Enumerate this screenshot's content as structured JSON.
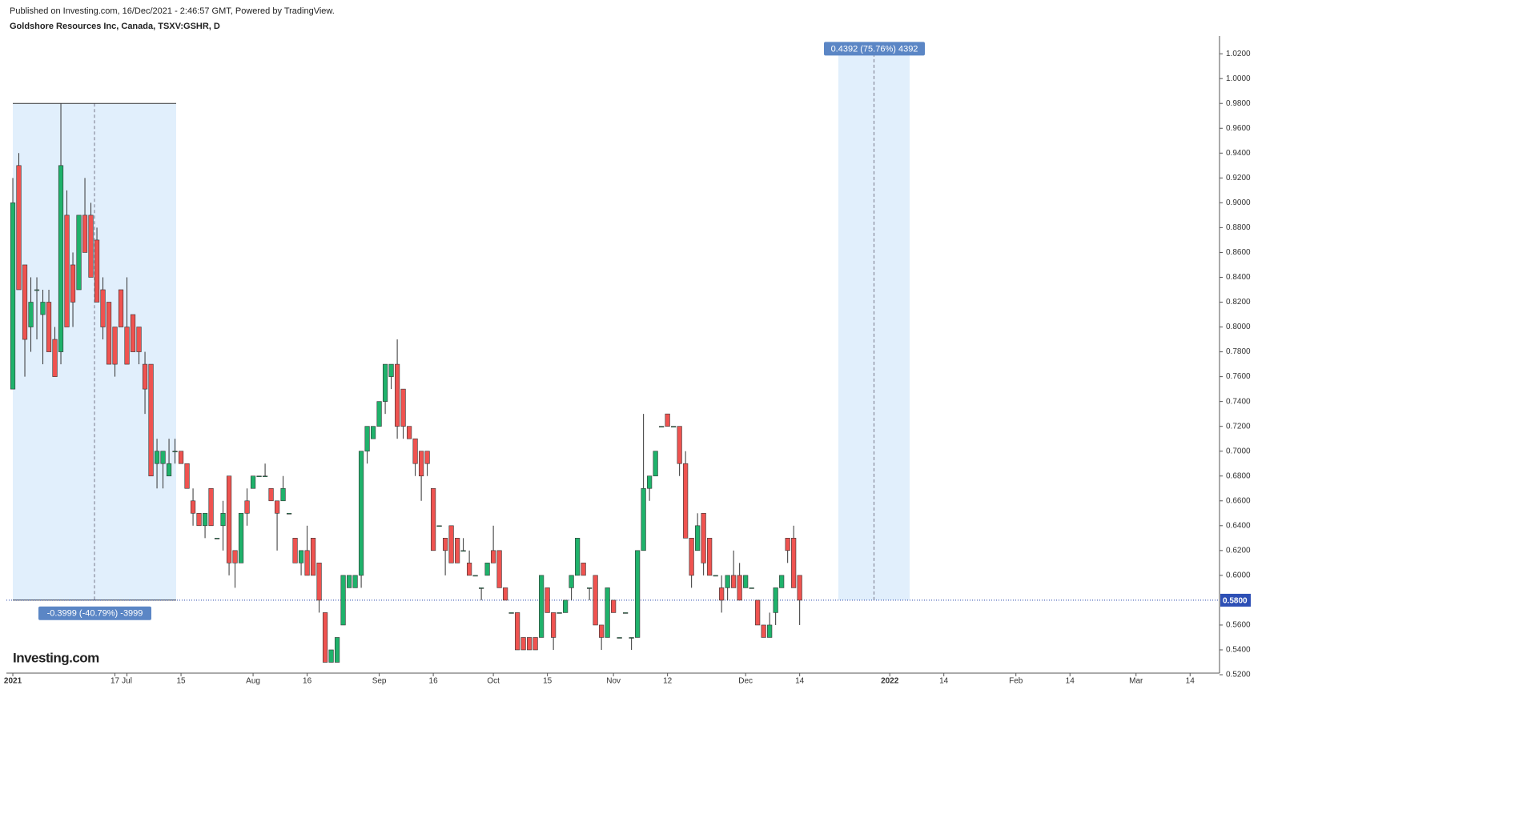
{
  "header": {
    "published": "Published on Investing.com, 16/Dec/2021 - 2:46:57 GMT, Powered by TradingView.",
    "symbol": "Goldshore Resources Inc, Canada, TSXV:GSHR, D"
  },
  "logo": "Investing.com",
  "chart_data": {
    "type": "candlestick",
    "up_color": "#1fb26b",
    "down_color": "#ef5350",
    "open": [
      0.75,
      0.93,
      0.85,
      0.8,
      0.83,
      0.81,
      0.82,
      0.79,
      0.78,
      0.89,
      0.85,
      0.83,
      0.89,
      0.89,
      0.87,
      0.83,
      0.82,
      0.8,
      0.83,
      0.8,
      0.81,
      0.8,
      0.77,
      0.77,
      0.69,
      0.69,
      0.68,
      0.7,
      0.7,
      0.69,
      0.66,
      0.65,
      0.64,
      0.67,
      0.63,
      0.64,
      0.68,
      0.62,
      0.61,
      0.66,
      0.67,
      0.68,
      0.68,
      0.67,
      0.66,
      0.66,
      0.65,
      0.63,
      0.61,
      0.62,
      0.63,
      0.61,
      0.57,
      0.53,
      0.53,
      0.56,
      0.59,
      0.59,
      0.6,
      0.7,
      0.71,
      0.72,
      0.74,
      0.76,
      0.77,
      0.75,
      0.72,
      0.71,
      0.7,
      0.7,
      0.67,
      0.64,
      0.63,
      0.64,
      0.63,
      0.62,
      0.61,
      0.6,
      0.59,
      0.6,
      0.62,
      0.62,
      0.59,
      0.57,
      0.57,
      0.55,
      0.55,
      0.55,
      0.55,
      0.59,
      0.57,
      0.57,
      0.57,
      0.59,
      0.6,
      0.61,
      0.59,
      0.6,
      0.56,
      0.55,
      0.58,
      0.55,
      0.57,
      0.55,
      0.55,
      0.62,
      0.67,
      0.68,
      0.72,
      0.73,
      0.72,
      0.72,
      0.69,
      0.63,
      0.62,
      0.65,
      0.63,
      0.6,
      0.59,
      0.59,
      0.6,
      0.6,
      0.59,
      0.59,
      0.58,
      0.56,
      0.55,
      0.57,
      0.59,
      0.63,
      0.63,
      0.6
    ],
    "high": [
      0.92,
      0.94,
      0.85,
      0.84,
      0.84,
      0.83,
      0.83,
      0.8,
      0.98,
      0.91,
      0.86,
      0.89,
      0.92,
      0.9,
      0.88,
      0.84,
      0.82,
      0.8,
      0.83,
      0.84,
      0.81,
      0.8,
      0.78,
      0.77,
      0.71,
      0.7,
      0.71,
      0.71,
      0.7,
      0.69,
      0.67,
      0.65,
      0.65,
      0.67,
      0.63,
      0.66,
      0.68,
      0.62,
      0.65,
      0.67,
      0.68,
      0.68,
      0.69,
      0.67,
      0.66,
      0.68,
      0.65,
      0.63,
      0.62,
      0.64,
      0.63,
      0.61,
      0.57,
      0.54,
      0.55,
      0.6,
      0.6,
      0.6,
      0.7,
      0.72,
      0.72,
      0.74,
      0.77,
      0.77,
      0.79,
      0.75,
      0.72,
      0.71,
      0.7,
      0.7,
      0.67,
      0.64,
      0.63,
      0.64,
      0.63,
      0.63,
      0.62,
      0.6,
      0.59,
      0.61,
      0.64,
      0.62,
      0.59,
      0.57,
      0.57,
      0.55,
      0.55,
      0.55,
      0.6,
      0.59,
      0.57,
      0.57,
      0.58,
      0.6,
      0.63,
      0.61,
      0.59,
      0.6,
      0.56,
      0.59,
      0.58,
      0.55,
      0.57,
      0.55,
      0.62,
      0.73,
      0.68,
      0.7,
      0.72,
      0.73,
      0.72,
      0.72,
      0.7,
      0.63,
      0.65,
      0.65,
      0.63,
      0.6,
      0.6,
      0.6,
      0.62,
      0.61,
      0.6,
      0.59,
      0.58,
      0.56,
      0.57,
      0.59,
      0.6,
      0.63,
      0.64,
      0.6
    ],
    "low": [
      0.75,
      0.83,
      0.76,
      0.78,
      0.79,
      0.77,
      0.78,
      0.76,
      0.77,
      0.8,
      0.8,
      0.83,
      0.86,
      0.84,
      0.82,
      0.79,
      0.77,
      0.76,
      0.8,
      0.77,
      0.78,
      0.77,
      0.73,
      0.68,
      0.67,
      0.67,
      0.68,
      0.69,
      0.69,
      0.67,
      0.64,
      0.64,
      0.63,
      0.64,
      0.63,
      0.62,
      0.6,
      0.59,
      0.61,
      0.64,
      0.67,
      0.68,
      0.68,
      0.66,
      0.62,
      0.66,
      0.65,
      0.61,
      0.6,
      0.6,
      0.6,
      0.57,
      0.53,
      0.53,
      0.53,
      0.56,
      0.59,
      0.59,
      0.59,
      0.69,
      0.71,
      0.72,
      0.73,
      0.75,
      0.71,
      0.71,
      0.71,
      0.68,
      0.66,
      0.68,
      0.62,
      0.64,
      0.6,
      0.61,
      0.61,
      0.62,
      0.6,
      0.6,
      0.58,
      0.6,
      0.61,
      0.59,
      0.58,
      0.57,
      0.54,
      0.54,
      0.54,
      0.54,
      0.55,
      0.57,
      0.54,
      0.57,
      0.57,
      0.58,
      0.6,
      0.6,
      0.58,
      0.56,
      0.54,
      0.55,
      0.57,
      0.55,
      0.57,
      0.54,
      0.55,
      0.62,
      0.66,
      0.68,
      0.72,
      0.72,
      0.72,
      0.68,
      0.63,
      0.59,
      0.62,
      0.6,
      0.6,
      0.6,
      0.57,
      0.58,
      0.59,
      0.58,
      0.59,
      0.59,
      0.56,
      0.55,
      0.55,
      0.56,
      0.59,
      0.61,
      0.59,
      0.56
    ],
    "close": [
      0.9,
      0.83,
      0.79,
      0.82,
      0.83,
      0.82,
      0.78,
      0.76,
      0.93,
      0.8,
      0.82,
      0.89,
      0.86,
      0.84,
      0.82,
      0.8,
      0.77,
      0.77,
      0.8,
      0.77,
      0.78,
      0.78,
      0.75,
      0.68,
      0.7,
      0.7,
      0.69,
      0.7,
      0.69,
      0.67,
      0.65,
      0.64,
      0.65,
      0.64,
      0.63,
      0.65,
      0.61,
      0.61,
      0.65,
      0.65,
      0.68,
      0.68,
      0.68,
      0.66,
      0.65,
      0.67,
      0.65,
      0.61,
      0.62,
      0.6,
      0.6,
      0.58,
      0.53,
      0.54,
      0.55,
      0.6,
      0.6,
      0.6,
      0.7,
      0.72,
      0.72,
      0.74,
      0.77,
      0.77,
      0.72,
      0.72,
      0.71,
      0.69,
      0.68,
      0.69,
      0.62,
      0.64,
      0.62,
      0.61,
      0.61,
      0.62,
      0.6,
      0.6,
      0.59,
      0.61,
      0.61,
      0.59,
      0.58,
      0.57,
      0.54,
      0.54,
      0.54,
      0.54,
      0.6,
      0.57,
      0.55,
      0.57,
      0.58,
      0.6,
      0.63,
      0.6,
      0.59,
      0.56,
      0.55,
      0.59,
      0.57,
      0.55,
      0.57,
      0.55,
      0.62,
      0.67,
      0.68,
      0.7,
      0.72,
      0.72,
      0.72,
      0.69,
      0.63,
      0.6,
      0.64,
      0.61,
      0.6,
      0.6,
      0.58,
      0.6,
      0.59,
      0.58,
      0.6,
      0.59,
      0.56,
      0.55,
      0.56,
      0.59,
      0.6,
      0.62,
      0.59,
      0.58
    ],
    "xlim": [
      -1.07,
      200.5
    ],
    "xticks": [
      {
        "value": 0,
        "label": "2021"
      },
      17,
      {
        "value": 19,
        "label": "Jul"
      },
      {
        "value": 28,
        "label": "15"
      },
      {
        "value": 40,
        "label": "Aug"
      },
      {
        "value": 49,
        "label": "16"
      },
      {
        "value": 61,
        "label": "Sep"
      },
      {
        "value": 70,
        "label": "16"
      },
      {
        "value": 80,
        "label": "Oct"
      },
      {
        "value": 89,
        "label": "15"
      },
      {
        "value": 100,
        "label": "Nov"
      },
      {
        "value": 109,
        "label": "12"
      },
      {
        "value": 122,
        "label": "Dec"
      },
      {
        "value": 131,
        "label": "14"
      },
      {
        "value": 146,
        "label": "2022"
      },
      {
        "value": 155,
        "label": "14"
      },
      {
        "value": 167,
        "label": "Feb"
      },
      {
        "value": 176,
        "label": "14"
      },
      {
        "value": 187,
        "label": "Mar"
      },
      {
        "value": 196,
        "label": "14"
      }
    ],
    "ylim": [
      0.52,
      1.033
    ],
    "yticks": [
      {
        "value": 0.52,
        "label": "0.5200"
      },
      {
        "value": 0.54,
        "label": "0.5400"
      },
      {
        "value": 0.56,
        "label": "0.5600"
      },
      {
        "value": 0.6,
        "label": "0.6000"
      },
      {
        "value": 0.62,
        "label": "0.6200"
      },
      {
        "value": 0.64,
        "label": "0.6400"
      },
      {
        "value": 0.66,
        "label": "0.6600"
      },
      {
        "value": 0.68,
        "label": "0.6800"
      },
      {
        "value": 0.7,
        "label": "0.7000"
      },
      {
        "value": 0.72,
        "label": "0.7200"
      },
      {
        "value": 0.74,
        "label": "0.7400"
      },
      {
        "value": 0.76,
        "label": "0.7600"
      },
      {
        "value": 0.78,
        "label": "0.7800"
      },
      {
        "value": 0.8,
        "label": "0.8000"
      },
      {
        "value": 0.82,
        "label": "0.8200"
      },
      {
        "value": 0.84,
        "label": "0.8400"
      },
      {
        "value": 0.86,
        "label": "0.8600"
      },
      {
        "value": 0.88,
        "label": "0.8800"
      },
      {
        "value": 0.9,
        "label": "0.9000"
      },
      {
        "value": 0.92,
        "label": "0.9200"
      },
      {
        "value": 0.94,
        "label": "0.9400"
      },
      {
        "value": 0.96,
        "label": "0.9600"
      },
      {
        "value": 0.98,
        "label": "0.9800"
      },
      {
        "value": 1.0,
        "label": "1.0000"
      },
      {
        "value": 1.02,
        "label": "1.0200"
      }
    ],
    "last_price": {
      "value": 0.58,
      "label": "0.5800"
    },
    "measurements": [
      {
        "label": "-0.3999 (-40.79%) -3999",
        "from": 0.98,
        "to": 0.5801
      },
      {
        "label": "0.4392 (75.76%) 4392",
        "from": 0.58,
        "to": 1.0192
      }
    ]
  }
}
